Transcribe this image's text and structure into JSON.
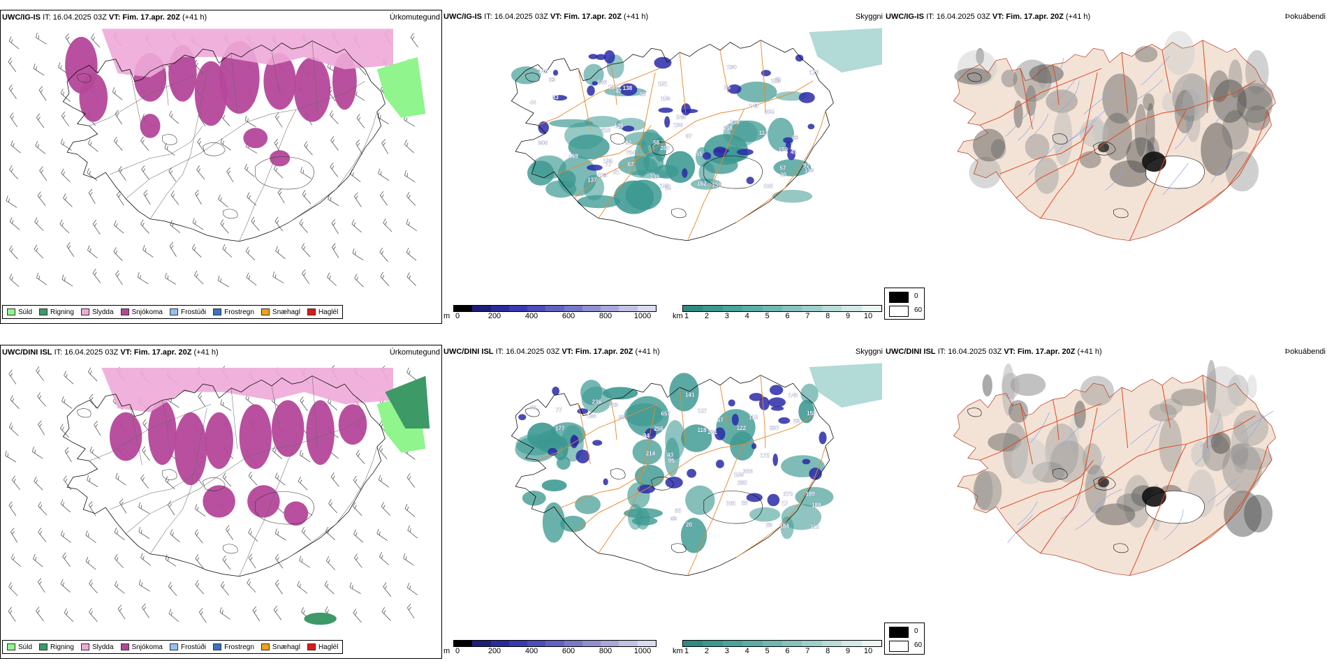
{
  "colors": {
    "precip_snow": "#b5479a",
    "precip_sleet": "#eeaad8",
    "precip_rain": "#3d9966",
    "precip_drizzle": "#8ff58c",
    "vis_teal": "#3b9891",
    "cloud_blue": "#2a2aa8",
    "roads_orange": "#e8892e",
    "terrain_land": "#f3e3d6",
    "roads_red": "#e2461e",
    "rivers_blue": "#8aa4ee"
  },
  "rows": [
    {
      "precip": {
        "title_model": "UWC/IG-IS",
        "title_it": "IT: 16.04.2025 03Z",
        "title_vt": "VT: Fim. 17.apr. 20Z",
        "title_lead": "(+41 h)",
        "name": "Úrkomutegund"
      },
      "vis": {
        "title_model": "UWC/IG-IS",
        "title_it": "IT: 16.04.2025 03Z",
        "title_vt": "VT: Fim. 17.apr. 20Z",
        "title_lead": "(+41 h)",
        "name": "Skyggni",
        "labels": [
          "96",
          "83",
          "130",
          "105",
          "136",
          "260",
          "306",
          "103",
          "57",
          "97",
          "159",
          "81",
          "83",
          "69",
          "140",
          "162",
          "92",
          "139",
          "137",
          "129",
          "113",
          "218",
          "469",
          "243",
          "83",
          "159",
          "20",
          "176",
          "205",
          "536",
          "784",
          "138",
          "41",
          "159",
          "138",
          "103",
          "25",
          "126",
          "55",
          "67",
          "58",
          "123",
          "143",
          "151",
          "87",
          "47",
          "158",
          "253",
          "17",
          "180",
          "25",
          "44"
        ]
      },
      "fog": {
        "title_model": "UWC/IG-IS",
        "title_it": "IT: 16.04.2025 03Z",
        "title_vt": "VT: Fim. 17.apr. 20Z",
        "title_lead": "(+41 h)",
        "name": "Þokuábendi"
      }
    },
    {
      "precip": {
        "title_model": "UWC/DINI ISL",
        "title_it": "IT: 16.04.2025 03Z",
        "title_vt": "VT: Fim. 17.apr. 20Z",
        "title_lead": "(+41 h)",
        "name": "Úrkomutegund"
      },
      "vis": {
        "title_model": "UWC/DINI ISL",
        "title_it": "IT: 16.04.2025 03Z",
        "title_vt": "VT: Fim. 17.apr. 20Z",
        "title_lead": "(+41 h)",
        "name": "Skyggni",
        "labels": [
          "184",
          "177",
          "76",
          "236",
          "93",
          "127",
          "141",
          "189",
          "122",
          "196",
          "94",
          "26",
          "65",
          "23",
          "158",
          "172",
          "270",
          "326",
          "256",
          "231",
          "214",
          "159",
          "657",
          "283",
          "188",
          "235",
          "101",
          "118",
          "118",
          "112",
          "237",
          "148",
          "93",
          "77",
          "95",
          "20",
          "67",
          "29",
          "43",
          "17"
        ]
      },
      "fog": {
        "title_model": "UWC/DINI ISL",
        "title_it": "IT: 16.04.2025 03Z",
        "title_vt": "VT: Fim. 17.apr. 20Z",
        "title_lead": "(+41 h)",
        "name": "Þokuábendi"
      }
    }
  ],
  "precip_legend": [
    {
      "label": "Súld",
      "color": "#8ff58c"
    },
    {
      "label": "Rigning",
      "color": "#3d9966"
    },
    {
      "label": "Slydda",
      "color": "#eeaad8"
    },
    {
      "label": "Snjókoma",
      "color": "#b5479a"
    },
    {
      "label": "Frostúði",
      "color": "#93c0ee"
    },
    {
      "label": "Frostregn",
      "color": "#3a72c2"
    },
    {
      "label": "Snæhagl",
      "color": "#efa020"
    },
    {
      "label": "Haglél",
      "color": "#e01818"
    }
  ],
  "cloudbase_bar": {
    "unit": "m",
    "ticks": [
      "0",
      "200",
      "400",
      "600",
      "800",
      "1000"
    ],
    "colors": [
      "#000000",
      "#1d1d7a",
      "#2b2b9e",
      "#3a3ab0",
      "#4d4dbb",
      "#6262c2",
      "#7878c8",
      "#9090d0",
      "#a8a8da",
      "#c2c2e6",
      "#dadaf0"
    ]
  },
  "visibility_bar": {
    "unit": "km",
    "ticks": [
      "1",
      "2",
      "3",
      "4",
      "5",
      "6",
      "7",
      "8",
      "9",
      "10"
    ],
    "colors": [
      "#2f8a82",
      "#3b9891",
      "#4aa39c",
      "#5cada6",
      "#70b8b1",
      "#87c3bd",
      "#9fcfca",
      "#b8dcd8",
      "#d2e9e6",
      "#ebf5f4"
    ]
  },
  "fog_legend": [
    {
      "label": "0",
      "color": "#000000"
    },
    {
      "label": "60",
      "color": "#ffffff"
    }
  ]
}
